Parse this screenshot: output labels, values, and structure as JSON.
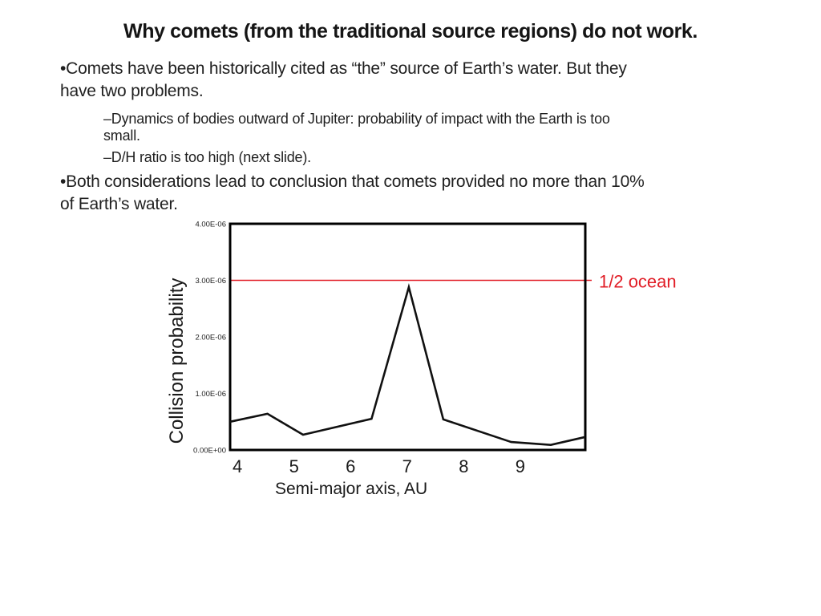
{
  "slide": {
    "title": "Why comets (from the traditional source regions) do not work."
  },
  "body": {
    "paragraphs": [
      {
        "level": 1,
        "lines": [
          "•Comets have been historically cited as “the” source of Earth’s water. But they",
          "have two problems."
        ]
      },
      {
        "level": 2,
        "lines": [
          "–Dynamics of bodies outward of Jupiter: probability of impact with the Earth is too",
          "small."
        ]
      },
      {
        "level": 2,
        "lines": [
          "–D/H ratio is too high (next slide)."
        ]
      },
      {
        "level": 1,
        "lines": [
          "•Both considerations lead to conclusion that comets provided no more than 10%",
          "of Earth’s water."
        ]
      }
    ]
  },
  "chart_data": {
    "type": "line",
    "title": "",
    "xlabel": "Semi-major axis, AU",
    "ylabel": "Collision probability",
    "x_ticks": [
      4,
      5,
      6,
      7,
      8,
      9
    ],
    "y_ticks_e6": [
      0,
      1,
      2,
      3,
      4
    ],
    "y_tick_labels": [
      "0.00E+00",
      "1.00E-06",
      "2.00E-06",
      "3.00E-06",
      "4.00E-06"
    ],
    "xlim": [
      3.87,
      10.15
    ],
    "ylim_e6": [
      0,
      4
    ],
    "grid": false,
    "series": [
      {
        "name": "collision probability",
        "x": [
          3.87,
          4.53,
          5.16,
          6.37,
          7.03,
          7.64,
          8.84,
          9.54,
          10.15
        ],
        "y_e6": [
          0.5,
          0.64,
          0.27,
          0.55,
          2.88,
          0.54,
          0.14,
          0.09,
          0.23
        ]
      }
    ],
    "reference_line": {
      "value_e6": 3,
      "label": "1/2 ocean"
    },
    "line_color": "#111111",
    "reference_color": "#e11d26"
  },
  "colors": {
    "accent_red": "#e11d26",
    "text": "#1f1f1f",
    "background": "#ffffff"
  }
}
